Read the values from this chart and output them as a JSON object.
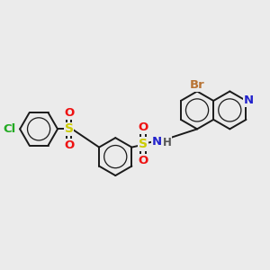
{
  "bg_color": "#ebebeb",
  "bond_color": "#1a1a1a",
  "bond_width": 1.4,
  "atoms": {
    "Br": {
      "color": "#b87333",
      "fontsize": 9.5
    },
    "N": {
      "color": "#2222cc",
      "fontsize": 9.5
    },
    "H": {
      "color": "#555555",
      "fontsize": 8.5
    },
    "S": {
      "color": "#cccc00",
      "fontsize": 10
    },
    "O": {
      "color": "#ee1111",
      "fontsize": 9.5
    },
    "Cl": {
      "color": "#22aa22",
      "fontsize": 9.5
    }
  },
  "ring_r": 0.3,
  "fig_xlim": [
    -1.85,
    2.35
  ],
  "fig_ylim": [
    -1.05,
    1.3
  ]
}
